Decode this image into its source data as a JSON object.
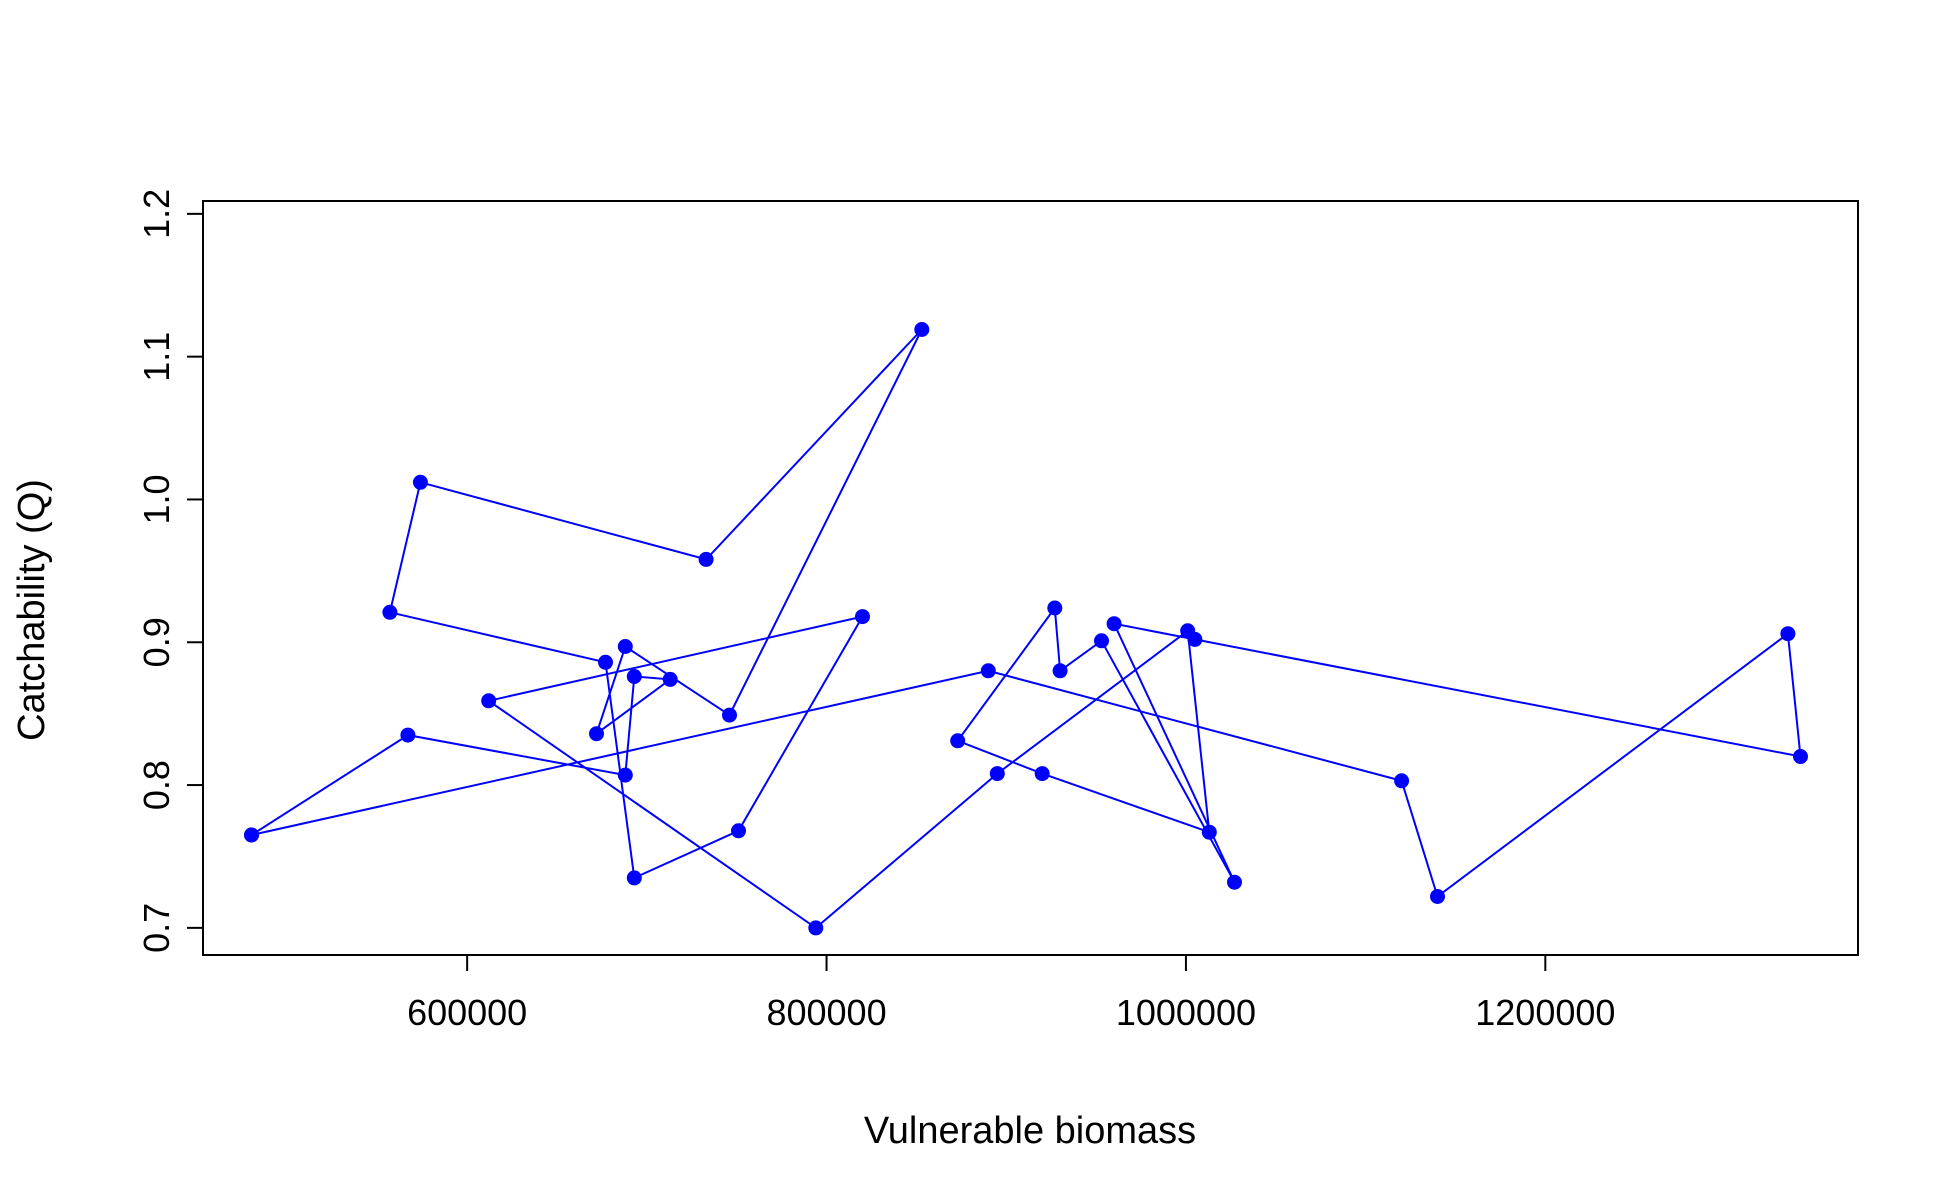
{
  "chart_data": {
    "type": "line",
    "title": "",
    "xlabel": "Vulnerable biomass",
    "ylabel": "Catchability (Q)",
    "xlim": [
      453000,
      1374000
    ],
    "ylim": [
      0.681,
      1.209
    ],
    "x_ticks": [
      600000,
      800000,
      1000000,
      1200000
    ],
    "x_tick_labels": [
      "600000",
      "800000",
      "1000000",
      "1200000"
    ],
    "y_ticks": [
      0.7,
      0.8,
      0.9,
      1.0,
      1.1,
      1.2
    ],
    "y_tick_labels": [
      "0.7",
      "0.8",
      "0.9",
      "1.0",
      "1.1",
      "1.2"
    ],
    "grid": false,
    "series": [
      {
        "color": "#0000ff",
        "marker": "filled-circle",
        "points": [
          [
            480000,
            0.765
          ],
          [
            890000,
            0.88
          ],
          [
            1120000,
            0.803
          ],
          [
            1140000,
            0.722
          ],
          [
            1335000,
            0.906
          ],
          [
            1342000,
            0.82
          ],
          [
            1005000,
            0.902
          ],
          [
            960000,
            0.913
          ],
          [
            1027000,
            0.732
          ],
          [
            953000,
            0.901
          ],
          [
            930000,
            0.88
          ],
          [
            927000,
            0.924
          ],
          [
            873000,
            0.831
          ],
          [
            920000,
            0.808
          ],
          [
            1013000,
            0.767
          ],
          [
            1001000,
            0.908
          ],
          [
            895000,
            0.808
          ],
          [
            794000,
            0.7
          ],
          [
            612000,
            0.859
          ],
          [
            820000,
            0.918
          ],
          [
            751000,
            0.768
          ],
          [
            693000,
            0.735
          ],
          [
            677000,
            0.886
          ],
          [
            557000,
            0.921
          ],
          [
            574000,
            1.012
          ],
          [
            733000,
            0.958
          ],
          [
            853000,
            1.119
          ],
          [
            746000,
            0.849
          ],
          [
            688000,
            0.897
          ],
          [
            672000,
            0.836
          ],
          [
            713000,
            0.874
          ],
          [
            693000,
            0.876
          ],
          [
            688000,
            0.807
          ],
          [
            567000,
            0.835
          ],
          [
            480000,
            0.765
          ]
        ]
      }
    ]
  }
}
